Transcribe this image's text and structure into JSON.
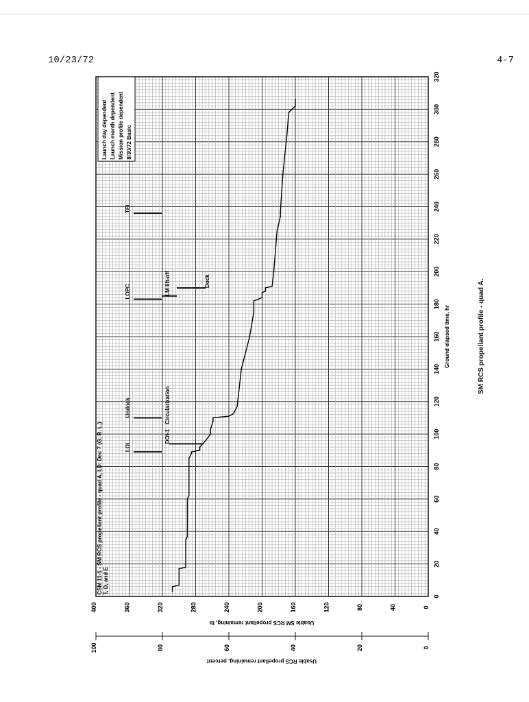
{
  "page": {
    "date": "10/23/72",
    "page_number": "4-7"
  },
  "chart_data": {
    "type": "line",
    "title": "CSM 11-1 - SM RCS propellant profile - quad A, LD: Dec 7 (G. R. L.)",
    "header_text": "T, D, and E",
    "caption": "SM RCS propellant profile - quad A.",
    "xlabel": "Ground elapsed time, hr",
    "ylabel": "Usable SM RCS propellant remaining, lb",
    "ylabel_secondary": "Usable RCS propellant remaining, percent",
    "xlim": [
      0,
      320
    ],
    "ylim": [
      0,
      400
    ],
    "y_secondary_lim": [
      0,
      100
    ],
    "x_ticks": [
      "0",
      "20",
      "40",
      "60",
      "80",
      "100",
      "120",
      "140",
      "160",
      "180",
      "200",
      "220",
      "240",
      "260",
      "280",
      "300",
      "320"
    ],
    "y_ticks": [
      "400",
      "360",
      "320",
      "280",
      "240",
      "200",
      "160",
      "120",
      "80",
      "40",
      "0"
    ],
    "y_secondary_ticks": [
      "100",
      "80",
      "60",
      "40",
      "20",
      "0"
    ],
    "legend": {
      "position": "top-right",
      "lines": [
        "Launch day dependent",
        "Launch month dependent",
        "Mission profile dependent",
        "8/30/72  Basic"
      ]
    },
    "events": [
      {
        "label": "LOI",
        "time": 89
      },
      {
        "label": "DOI-1",
        "time": 94
      },
      {
        "label": "Circularization",
        "time": 110
      },
      {
        "label": "Undock",
        "time": 110
      },
      {
        "label": "LOPC",
        "time": 183
      },
      {
        "label": "LM lift-off",
        "time": 185
      },
      {
        "label": "Dock",
        "time": 190
      },
      {
        "label": "TEI",
        "time": 236
      }
    ],
    "series": [
      {
        "x": [
          3,
          6,
          7,
          17,
          18,
          35,
          37,
          60,
          62,
          85,
          88,
          89,
          90,
          92,
          96,
          100,
          103,
          108,
          110,
          111,
          112,
          113,
          117,
          140,
          160,
          175,
          182,
          184,
          187,
          188,
          190,
          191,
          200,
          225,
          234,
          237,
          260,
          285,
          298,
          302,
          306
        ],
        "y": [
          308,
          308,
          300,
          300,
          292,
          292,
          290,
          290,
          288,
          288,
          285,
          285,
          275,
          275,
          268,
          262,
          262,
          259,
          259,
          240,
          236,
          234,
          230,
          225,
          215,
          210,
          210,
          200,
          200,
          196,
          196,
          188,
          186,
          182,
          178,
          178,
          175,
          170,
          168,
          160,
          160
        ]
      }
    ]
  }
}
